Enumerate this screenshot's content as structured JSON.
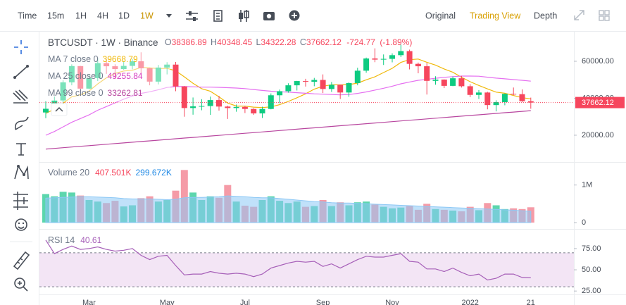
{
  "toolbar": {
    "items": [
      "Time",
      "15m",
      "1H",
      "4H",
      "1D",
      "1W"
    ],
    "active_item": 5,
    "views": [
      "Original",
      "Trading View",
      "Depth"
    ],
    "active_view": 1
  },
  "chart_data": [
    {
      "type": "candlestick",
      "title": "BTCUSDT · 1W · Binance",
      "ohlc_labels": [
        "O",
        "H",
        "L",
        "C"
      ],
      "change": -724.77,
      "change_pct": {
        "value": -1.89,
        "label": "(-1.89%)"
      },
      "categories": [
        null,
        null,
        null,
        null,
        null,
        "Mar",
        null,
        null,
        null,
        null,
        null,
        null,
        null,
        null,
        "May",
        null,
        null,
        null,
        null,
        null,
        null,
        null,
        null,
        "Jul",
        null,
        null,
        null,
        null,
        null,
        null,
        null,
        null,
        "Sep",
        null,
        null,
        null,
        null,
        null,
        null,
        null,
        "Nov",
        null,
        null,
        null,
        null,
        null,
        null,
        null,
        null,
        "2022",
        null,
        null,
        null,
        null,
        null,
        null,
        "21"
      ],
      "open": [
        32300,
        34300,
        38800,
        48600,
        57400,
        45200,
        50900,
        59000,
        57300,
        55800,
        57500,
        60000,
        56200,
        49000,
        56600,
        58200,
        46400,
        34700,
        35600,
        35800,
        39000,
        35500,
        34700,
        35300,
        34200,
        31800,
        34200,
        41600,
        43800,
        47000,
        49300,
        48900,
        49900,
        45000,
        47300,
        43100,
        48200,
        54900,
        61500,
        60900,
        61300,
        63300,
        65500,
        58600,
        57300,
        49400,
        50100,
        46700,
        50800,
        46500,
        41800,
        43100,
        36300,
        37900,
        42400,
        42200,
        38386.89
      ],
      "high": [
        38500,
        40900,
        49700,
        58350,
        57500,
        52600,
        61800,
        61200,
        58400,
        60200,
        61300,
        64850,
        56500,
        58000,
        59500,
        59600,
        46600,
        40400,
        39500,
        40900,
        41300,
        36000,
        36600,
        35900,
        34600,
        35400,
        42600,
        44700,
        48100,
        49400,
        50500,
        51000,
        52900,
        48800,
        47400,
        48500,
        56500,
        62000,
        67000,
        63700,
        64300,
        69000,
        66300,
        59300,
        59100,
        51900,
        50200,
        51800,
        52100,
        47600,
        44400,
        43500,
        38900,
        42600,
        45800,
        44800,
        40348.45
      ],
      "low": [
        29200,
        32300,
        37300,
        47000,
        43000,
        44900,
        49300,
        53200,
        50400,
        55400,
        55600,
        51000,
        47000,
        47500,
        52900,
        43800,
        30000,
        31100,
        33500,
        31000,
        33300,
        28800,
        32700,
        32000,
        31000,
        29300,
        34000,
        37300,
        43000,
        44200,
        46300,
        46500,
        42800,
        43400,
        39600,
        40800,
        47000,
        53800,
        59500,
        58000,
        59400,
        62300,
        55600,
        53500,
        42000,
        47300,
        45500,
        46500,
        45800,
        40600,
        39600,
        34000,
        32900,
        36200,
        41700,
        38000,
        34322.28
      ],
      "close": [
        34300,
        38800,
        48600,
        57400,
        45200,
        50900,
        59000,
        57300,
        55800,
        57500,
        60000,
        56200,
        49000,
        56600,
        58200,
        46400,
        34700,
        35600,
        35800,
        39000,
        35500,
        34700,
        35300,
        34200,
        31800,
        34200,
        41600,
        43800,
        47000,
        49300,
        48900,
        49900,
        45000,
        47300,
        43100,
        48200,
        54900,
        61500,
        60900,
        61300,
        63300,
        65500,
        58600,
        57300,
        49400,
        50100,
        46700,
        50800,
        46500,
        41800,
        43100,
        36300,
        37900,
        42400,
        42200,
        38386.89,
        37662.12
      ],
      "colors": {
        "up": "#0ecb81",
        "down": "#f6465d"
      },
      "series": [
        {
          "name": "MA 7 close 0",
          "color": "#f0b90b",
          "values": [
            31843,
            34100,
            37300,
            40786,
            41800,
            43929,
            47743,
            51029,
            53457,
            54729,
            55100,
            56671,
            56400,
            56057,
            56186,
            54843,
            51586,
            48100,
            45186,
            43757,
            40743,
            37386,
            35800,
            35729,
            35186,
            34957,
            35329,
            36514,
            38271,
            40271,
            42371,
            44957,
            46500,
            47314,
            47214,
            47386,
            48186,
            49986,
            51557,
            53886,
            56171,
            59371,
            60857,
            61200,
            59471,
            57929,
            55843,
            54057,
            51343,
            48943,
            46914,
            45043,
            43300,
            42686,
            41457,
            40300,
            39668.79
          ]
        },
        {
          "name": "MA 25 close 0",
          "color": "#e56ff0",
          "values": [
            20000,
            22000,
            24500,
            27000,
            29000,
            31000,
            33500,
            35500,
            37500,
            39500,
            41200,
            42600,
            43500,
            44600,
            45800,
            46300,
            46300,
            46200,
            46000,
            46000,
            45900,
            45700,
            45500,
            45200,
            44700,
            44200,
            43800,
            43500,
            43300,
            43000,
            42700,
            42400,
            42200,
            42000,
            41800,
            42000,
            42600,
            43400,
            44400,
            45400,
            46500,
            47800,
            48800,
            49700,
            50200,
            50800,
            51300,
            51700,
            52000,
            52000,
            51900,
            51400,
            50900,
            50500,
            50100,
            49700,
            49255.84
          ]
        },
        {
          "name": "MA 99 close 0",
          "color": "#b8469f",
          "values": [
            12500,
            12870,
            13240,
            13610,
            13980,
            14360,
            14730,
            15100,
            15470,
            15840,
            16210,
            16580,
            16950,
            17320,
            17690,
            18070,
            18440,
            18810,
            19180,
            19550,
            19920,
            20290,
            20660,
            21030,
            21400,
            21780,
            22150,
            22520,
            22890,
            23260,
            23630,
            24000,
            24370,
            24740,
            25110,
            25490,
            25860,
            26230,
            26600,
            26970,
            27340,
            27710,
            28080,
            28450,
            28820,
            29200,
            29570,
            29940,
            30310,
            30680,
            31050,
            31420,
            31790,
            32160,
            32530,
            32900,
            33262.81
          ]
        }
      ],
      "ylim": [
        5500,
        76000
      ],
      "yticks": [
        {
          "value": 20000,
          "label": "20000.00"
        },
        {
          "value": 40000,
          "label": "40000.00"
        },
        {
          "value": 60000,
          "label": "60000.00"
        }
      ]
    },
    {
      "type": "bar",
      "title": "Volume 20",
      "colors": {
        "up": "#3fcf9f",
        "down": "#f38a98"
      },
      "series": [
        {
          "values": [
            760000,
            700000,
            820000,
            800000,
            720000,
            600000,
            560000,
            520000,
            580000,
            430000,
            460000,
            650000,
            700000,
            560000,
            600000,
            850000,
            1400000,
            800000,
            600000,
            700000,
            660000,
            1000000,
            560000,
            450000,
            420000,
            600000,
            700000,
            580000,
            520000,
            560000,
            420000,
            440000,
            600000,
            440000,
            540000,
            460000,
            540000,
            560000,
            480000,
            420000,
            380000,
            400000,
            440000,
            340000,
            500000,
            360000,
            340000,
            320000,
            300000,
            420000,
            330000,
            520000,
            460000,
            360000,
            380000,
            360000,
            407501
          ],
          "value_labels": [
            null,
            null,
            null,
            null,
            null,
            null,
            null,
            null,
            null,
            null,
            null,
            null,
            null,
            null,
            null,
            null,
            null,
            null,
            null,
            null,
            null,
            null,
            null,
            null,
            null,
            null,
            null,
            null,
            null,
            null,
            null,
            null,
            null,
            null,
            null,
            null,
            null,
            null,
            null,
            null,
            null,
            null,
            null,
            null,
            null,
            null,
            null,
            null,
            null,
            null,
            null,
            null,
            null,
            null,
            null,
            null,
            "407.501K"
          ]
        },
        {
          "color": "#8cc8f5",
          "values": [
            650000,
            660000,
            670000,
            680000,
            690000,
            690000,
            680000,
            670000,
            660000,
            640000,
            630000,
            630000,
            630000,
            620000,
            610000,
            620000,
            660000,
            670000,
            670000,
            680000,
            690000,
            710000,
            700000,
            690000,
            670000,
            660000,
            660000,
            640000,
            620000,
            600000,
            580000,
            560000,
            550000,
            530000,
            520000,
            520000,
            510000,
            500000,
            490000,
            480000,
            470000,
            460000,
            450000,
            440000,
            430000,
            420000,
            410000,
            400000,
            390000,
            380000,
            370000,
            360000,
            350000,
            340000,
            330000,
            315000,
            299672
          ],
          "value_labels": [
            null,
            null,
            null,
            null,
            null,
            null,
            null,
            null,
            null,
            null,
            null,
            null,
            null,
            null,
            null,
            null,
            null,
            null,
            null,
            null,
            null,
            null,
            null,
            null,
            null,
            null,
            null,
            null,
            null,
            null,
            null,
            null,
            null,
            null,
            null,
            null,
            null,
            null,
            null,
            null,
            null,
            null,
            null,
            null,
            null,
            null,
            null,
            null,
            null,
            null,
            null,
            null,
            null,
            null,
            null,
            null,
            "299.672K"
          ]
        }
      ],
      "ylim": [
        0,
        1500000
      ],
      "yticks": [
        0,
        {
          "value": 1000000,
          "label": "1M"
        }
      ]
    },
    {
      "type": "line",
      "title": "RSI 14",
      "series": [
        {
          "color": "#a65fb8",
          "values": [
            85,
            69,
            74,
            78,
            74,
            75,
            77,
            74,
            72,
            73,
            75,
            67,
            62,
            66,
            67,
            55,
            44,
            45,
            45,
            48,
            46,
            45,
            46,
            45,
            42,
            45,
            52,
            55,
            58,
            60,
            59,
            60,
            54,
            57,
            52,
            57,
            62,
            66,
            65,
            65,
            67,
            69,
            60,
            59,
            51,
            51,
            48,
            52,
            47,
            43,
            45,
            38,
            40,
            45,
            45,
            41,
            40.61
          ]
        }
      ],
      "bands": [
        30,
        70
      ],
      "ylim": [
        21,
        94
      ],
      "yticks": [
        {
          "value": 25,
          "label": "25.00"
        },
        {
          "value": 50,
          "label": "50.00"
        },
        {
          "value": 75,
          "label": "75.00"
        }
      ]
    }
  ]
}
